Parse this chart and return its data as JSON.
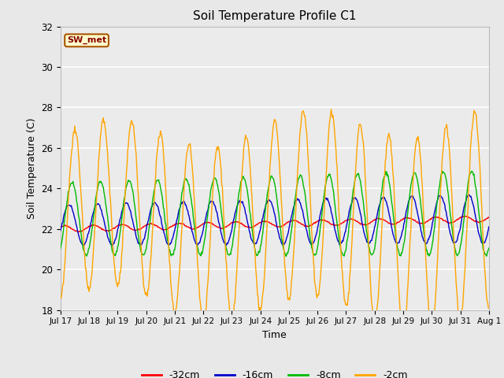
{
  "title": "Soil Temperature Profile C1",
  "xlabel": "Time",
  "ylabel": "Soil Temperature (C)",
  "ylim": [
    18,
    32
  ],
  "yticks": [
    18,
    20,
    22,
    24,
    26,
    28,
    30,
    32
  ],
  "annotation_text": "SW_met",
  "annotation_bg": "#FFFFCC",
  "annotation_border": "#AA5500",
  "annotation_text_color": "#880000",
  "colors": {
    "-32cm": "#FF0000",
    "-16cm": "#0000CC",
    "-8cm": "#00BB00",
    "-2cm": "#FFA500"
  },
  "xtick_labels": [
    "Jul 17",
    "Jul 18",
    "Jul 19",
    "Jul 20",
    "Jul 21",
    "Jul 22",
    "Jul 23",
    "Jul 24",
    "Jul 25",
    "Jul 26",
    "Jul 27",
    "Jul 28",
    "Jul 29",
    "Jul 30",
    "Jul 31",
    "Aug 1"
  ],
  "n_points": 721,
  "background_color": "#E8E8E8",
  "plot_bg": "#EBEBEB",
  "figsize": [
    6.4,
    4.8
  ],
  "dpi": 100
}
